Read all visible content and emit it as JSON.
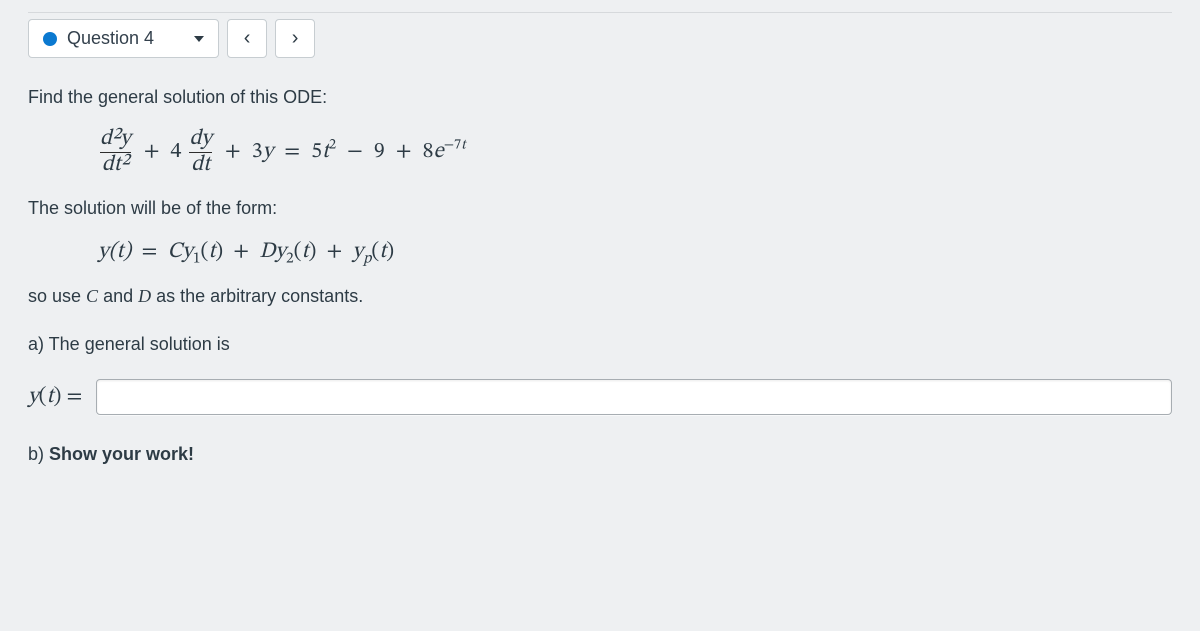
{
  "header": {
    "question_label": "Question 4",
    "status_color": "#0b79d0",
    "prev_glyph": "‹",
    "next_glyph": "›"
  },
  "body": {
    "intro": "Find the general solution of this ODE:",
    "ode": {
      "term1_num": "d²y",
      "term1_den": "dt²",
      "plus1": "+",
      "coef2": "4",
      "term2_num": "dy",
      "term2_den": "dt",
      "plus2": "+",
      "term3": "3y",
      "eq": "=",
      "rhs_a": "5t²",
      "minus": "−",
      "rhs_b": "9",
      "plus3": "+",
      "rhs_c_base": "8e",
      "rhs_c_exp": "−7t"
    },
    "form_intro": "The solution will be of the form:",
    "form_eq": {
      "lhs": "y(t)",
      "eq": "=",
      "t1c": "C",
      "t1y": "y",
      "t1sub": "1",
      "t1arg": "(t)",
      "plus1": "+",
      "t2c": "D",
      "t2y": "y",
      "t2sub": "2",
      "t2arg": "(t)",
      "plus2": "+",
      "t3y": "y",
      "t3sub": "p",
      "t3arg": "(t)"
    },
    "constants_pre": "so use ",
    "constants_C": "C",
    "constants_mid": " and ",
    "constants_D": "D",
    "constants_post": " as the arbitrary constants.",
    "part_a": "a) The general solution is",
    "answer_lhs": "y(t) =",
    "answer_value": "",
    "answer_placeholder": "",
    "part_b_prefix": "b) ",
    "part_b_bold": "Show your work!"
  },
  "colors": {
    "page_bg": "#eef0f2",
    "text": "#2d3b45",
    "border": "#c7cdd1",
    "input_border": "#a7adb2"
  }
}
